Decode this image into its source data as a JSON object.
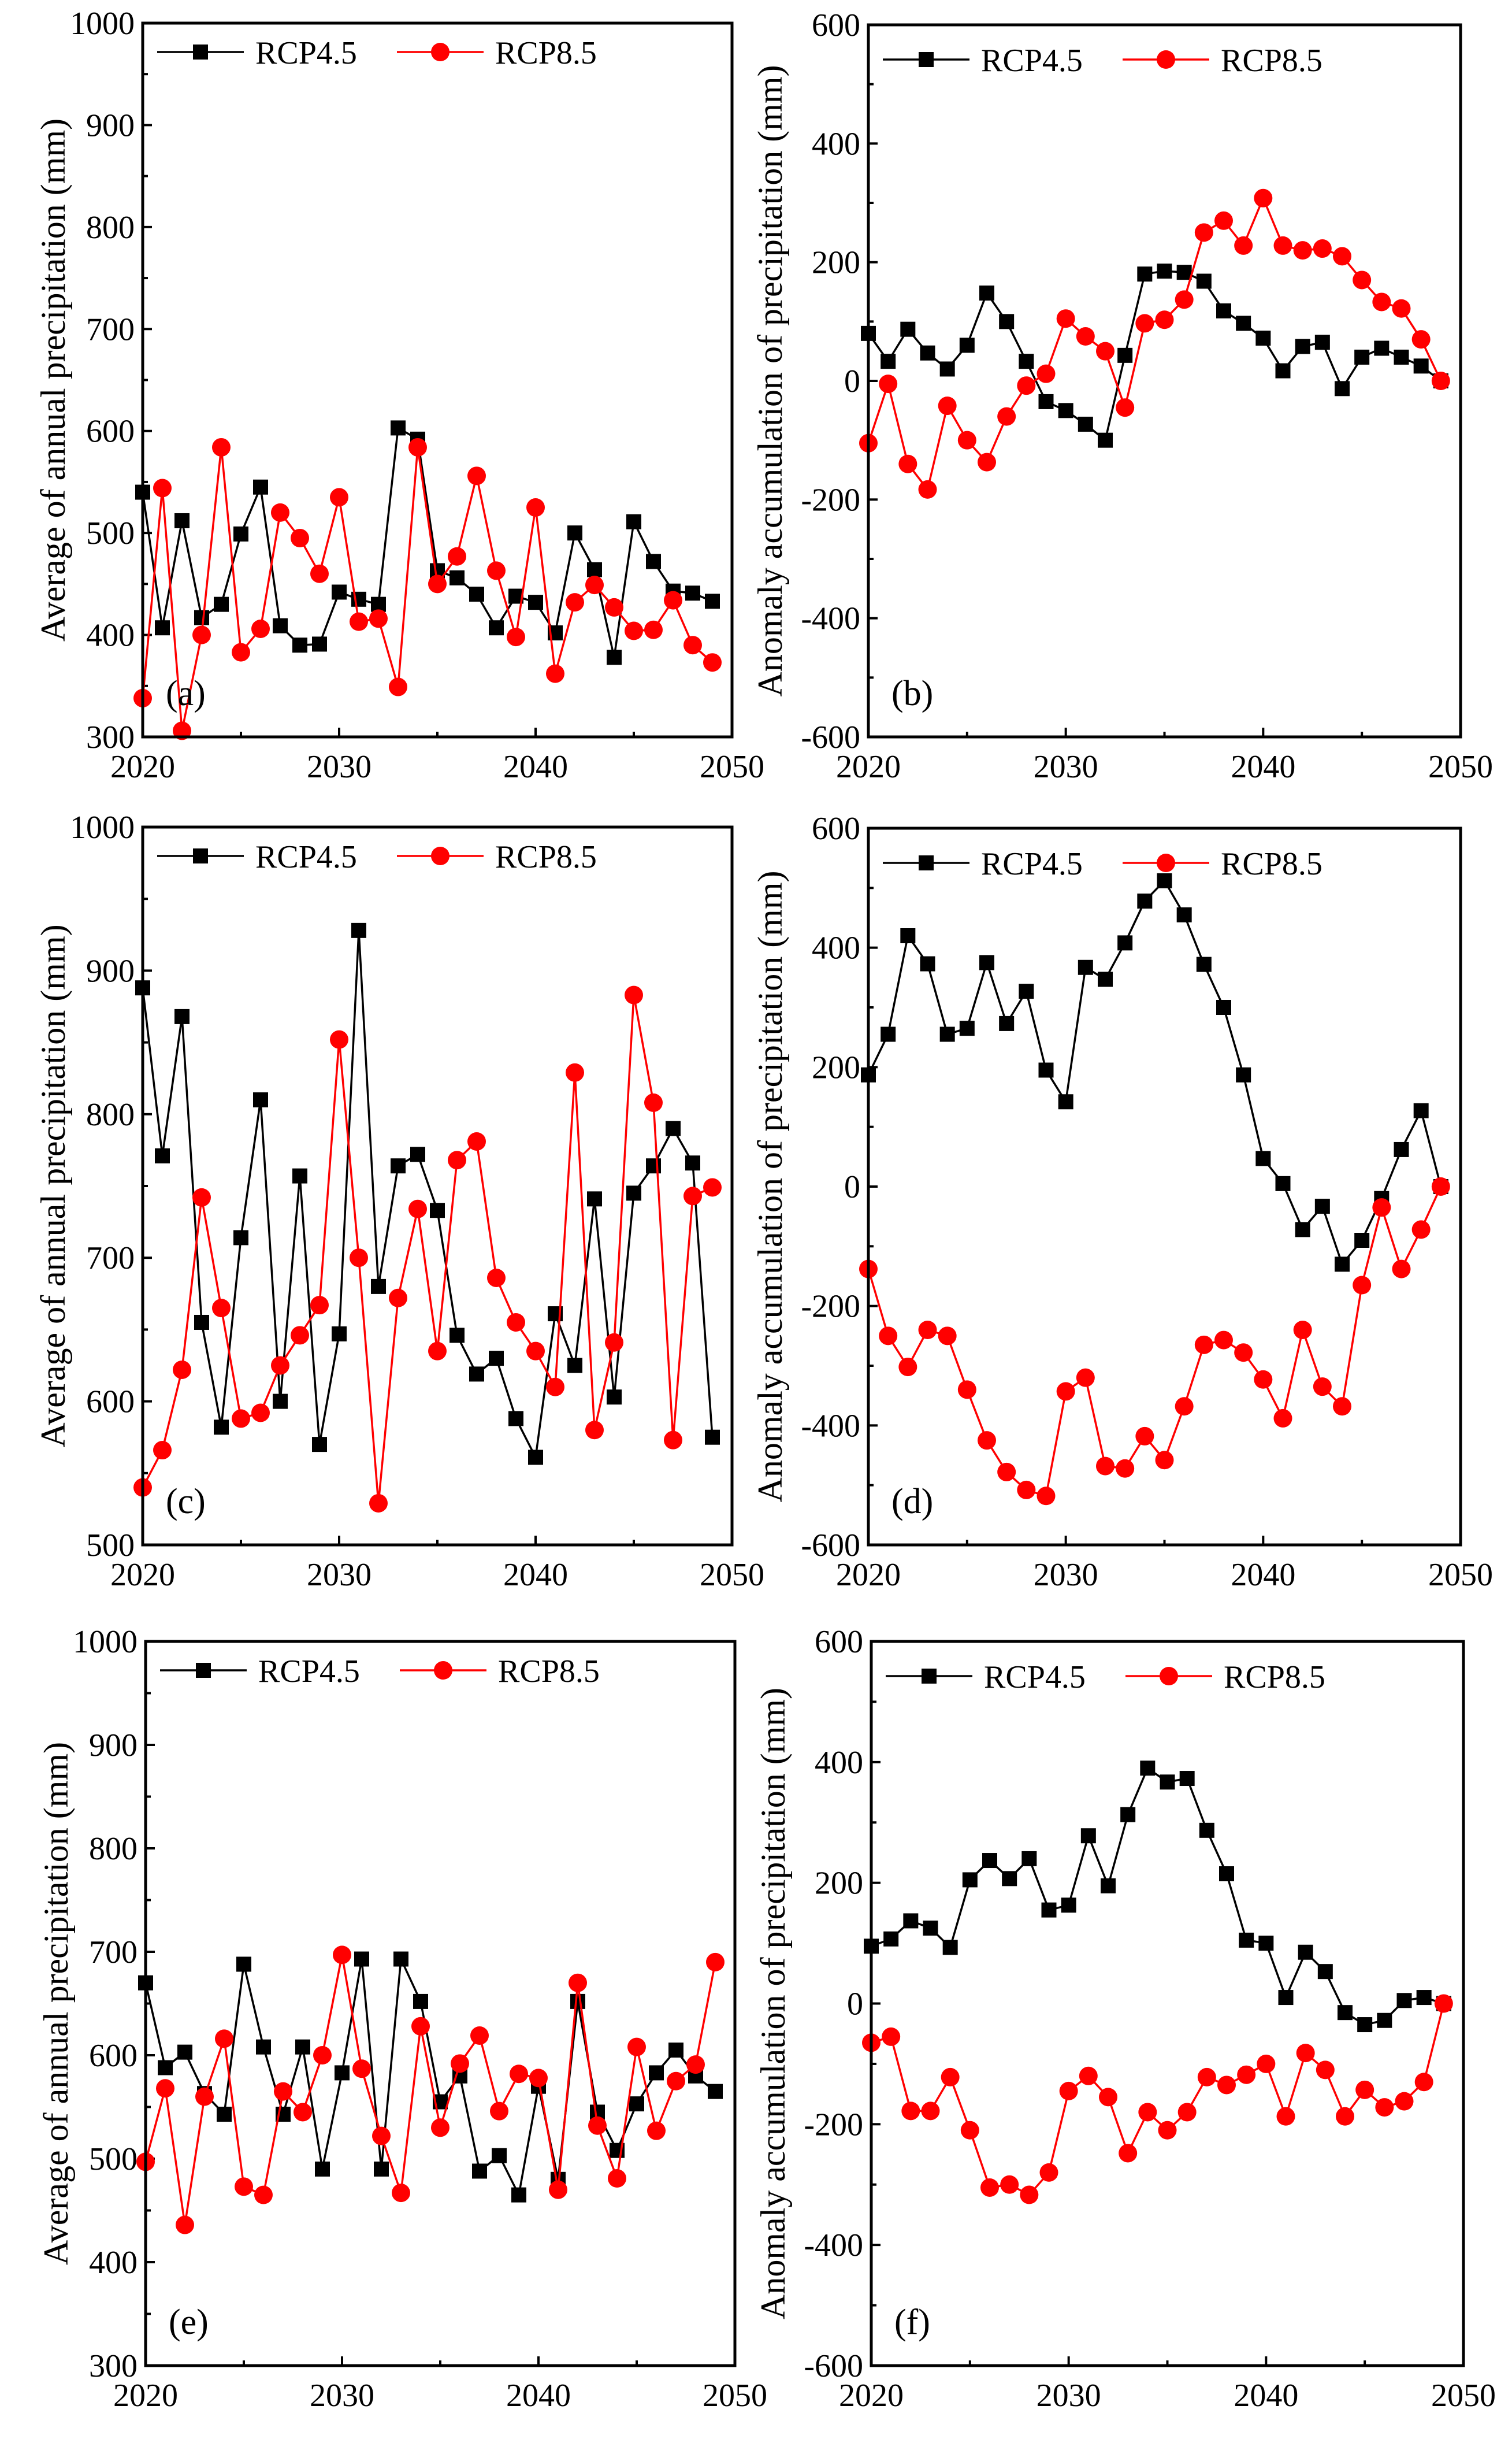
{
  "chart_data": [
    {
      "panel": "(a)",
      "type": "line",
      "xlabel": "",
      "ylabel": "Average of annual precipitation (mm)",
      "xlim": [
        2020,
        2050
      ],
      "ylim": [
        300,
        1000
      ],
      "xticks": [
        2020,
        2030,
        2040,
        2050
      ],
      "yticks": [
        300,
        400,
        500,
        600,
        700,
        800,
        900,
        1000
      ],
      "legend": "top-left",
      "x": [
        2020,
        2021,
        2022,
        2023,
        2024,
        2025,
        2026,
        2027,
        2028,
        2029,
        2030,
        2031,
        2032,
        2033,
        2034,
        2035,
        2036,
        2037,
        2038,
        2039,
        2040,
        2041,
        2042,
        2043,
        2044,
        2045,
        2046,
        2047,
        2048,
        2049
      ],
      "series": [
        {
          "name": "RCP4.5",
          "color": "#000000",
          "marker": "square",
          "values": [
            540,
            407,
            512,
            417,
            430,
            499,
            545,
            409,
            390,
            391,
            442,
            435,
            430,
            603,
            592,
            463,
            456,
            440,
            407,
            438,
            432,
            402,
            500,
            464,
            378,
            511,
            472,
            443,
            441,
            433
          ]
        },
        {
          "name": "RCP8.5",
          "color": "#ff0000",
          "marker": "circle",
          "values": [
            338,
            544,
            306,
            400,
            584,
            383,
            406,
            520,
            495,
            460,
            535,
            413,
            416,
            349,
            584,
            450,
            477,
            556,
            463,
            398,
            525,
            362,
            432,
            449,
            427,
            404,
            405,
            434,
            390,
            373
          ]
        }
      ]
    },
    {
      "panel": "(b)",
      "type": "line",
      "xlabel": "",
      "ylabel": "Anomaly accumulation of precipitation (mm)",
      "xlim": [
        2020,
        2050
      ],
      "ylim": [
        -600,
        600
      ],
      "xticks": [
        2020,
        2030,
        2040,
        2050
      ],
      "yticks": [
        -600,
        -400,
        -200,
        0,
        200,
        400,
        600
      ],
      "legend": "top-left",
      "x": [
        2020,
        2021,
        2022,
        2023,
        2024,
        2025,
        2026,
        2027,
        2028,
        2029,
        2030,
        2031,
        2032,
        2033,
        2034,
        2035,
        2036,
        2037,
        2038,
        2039,
        2040,
        2041,
        2042,
        2043,
        2044,
        2045,
        2046,
        2047,
        2048,
        2049
      ],
      "series": [
        {
          "name": "RCP4.5",
          "color": "#000000",
          "marker": "square",
          "values": [
            80,
            33,
            87,
            47,
            20,
            60,
            148,
            100,
            33,
            -35,
            -50,
            -73,
            -100,
            43,
            180,
            185,
            183,
            168,
            118,
            97,
            72,
            17,
            58,
            65,
            -13,
            40,
            55,
            40,
            25,
            0
          ]
        },
        {
          "name": "RCP8.5",
          "color": "#ff0000",
          "marker": "circle",
          "values": [
            -105,
            -5,
            -140,
            -183,
            -42,
            -100,
            -137,
            -60,
            -8,
            12,
            105,
            75,
            50,
            -45,
            97,
            103,
            137,
            250,
            270,
            228,
            308,
            228,
            220,
            223,
            210,
            170,
            133,
            122,
            70,
            0
          ]
        }
      ]
    },
    {
      "panel": "(c)",
      "type": "line",
      "xlabel": "",
      "ylabel": "Average of annual precipitation (mm)",
      "xlim": [
        2020,
        2050
      ],
      "ylim": [
        500,
        1000
      ],
      "xticks": [
        2020,
        2030,
        2040,
        2050
      ],
      "yticks": [
        500,
        600,
        700,
        800,
        900,
        1000
      ],
      "legend": "top-left",
      "x": [
        2020,
        2021,
        2022,
        2023,
        2024,
        2025,
        2026,
        2027,
        2028,
        2029,
        2030,
        2031,
        2032,
        2033,
        2034,
        2035,
        2036,
        2037,
        2038,
        2039,
        2040,
        2041,
        2042,
        2043,
        2044,
        2045,
        2046,
        2047,
        2048,
        2049
      ],
      "series": [
        {
          "name": "RCP4.5",
          "color": "#000000",
          "marker": "square",
          "values": [
            888,
            771,
            868,
            655,
            582,
            714,
            810,
            600,
            757,
            570,
            647,
            928,
            680,
            764,
            772,
            733,
            646,
            619,
            630,
            588,
            561,
            661,
            625,
            741,
            603,
            745,
            764,
            790,
            766,
            575
          ]
        },
        {
          "name": "RCP8.5",
          "color": "#ff0000",
          "marker": "circle",
          "values": [
            540,
            566,
            622,
            742,
            665,
            588,
            592,
            625,
            646,
            667,
            852,
            700,
            529,
            672,
            734,
            635,
            768,
            781,
            686,
            655,
            635,
            610,
            829,
            580,
            641,
            883,
            808,
            573,
            743,
            749
          ]
        }
      ]
    },
    {
      "panel": "(d)",
      "type": "line",
      "xlabel": "",
      "ylabel": "Anomaly accumulation of precipitation (mm)",
      "xlim": [
        2020,
        2050
      ],
      "ylim": [
        -600,
        600
      ],
      "xticks": [
        2020,
        2030,
        2040,
        2050
      ],
      "yticks": [
        -600,
        -400,
        -200,
        0,
        200,
        400,
        600
      ],
      "legend": "top-left",
      "x": [
        2020,
        2021,
        2022,
        2023,
        2024,
        2025,
        2026,
        2027,
        2028,
        2029,
        2030,
        2031,
        2032,
        2033,
        2034,
        2035,
        2036,
        2037,
        2038,
        2039,
        2040,
        2041,
        2042,
        2043,
        2044,
        2045,
        2046,
        2047,
        2048,
        2049
      ],
      "series": [
        {
          "name": "RCP4.5",
          "color": "#000000",
          "marker": "square",
          "values": [
            187,
            255,
            420,
            373,
            255,
            265,
            375,
            273,
            327,
            195,
            142,
            367,
            347,
            408,
            478,
            512,
            455,
            372,
            300,
            187,
            47,
            5,
            -72,
            -33,
            -130,
            -90,
            -20,
            62,
            127,
            0
          ]
        },
        {
          "name": "RCP8.5",
          "color": "#ff0000",
          "marker": "circle",
          "values": [
            -138,
            -250,
            -302,
            -240,
            -250,
            -340,
            -425,
            -478,
            -508,
            -518,
            -343,
            -320,
            -468,
            -472,
            -418,
            -458,
            -368,
            -265,
            -257,
            -278,
            -323,
            -388,
            -240,
            -335,
            -368,
            -165,
            -35,
            -138,
            -72,
            0
          ]
        }
      ]
    },
    {
      "panel": "(e)",
      "type": "line",
      "xlabel": "",
      "ylabel": "Average of annual precipitation (mm)",
      "xlim": [
        2020,
        2050
      ],
      "ylim": [
        300,
        1000
      ],
      "xticks": [
        2020,
        2030,
        2040,
        2050
      ],
      "yticks": [
        300,
        400,
        500,
        600,
        700,
        800,
        900,
        1000
      ],
      "legend": "top-left",
      "x": [
        2020,
        2021,
        2022,
        2023,
        2024,
        2025,
        2026,
        2027,
        2028,
        2029,
        2030,
        2031,
        2032,
        2033,
        2034,
        2035,
        2036,
        2037,
        2038,
        2039,
        2040,
        2041,
        2042,
        2043,
        2044,
        2045,
        2046,
        2047,
        2048,
        2049
      ],
      "series": [
        {
          "name": "RCP4.5",
          "color": "#000000",
          "marker": "square",
          "values": [
            670,
            588,
            603,
            563,
            543,
            688,
            608,
            543,
            608,
            490,
            583,
            693,
            490,
            693,
            652,
            555,
            580,
            488,
            503,
            465,
            570,
            480,
            652,
            545,
            508,
            553,
            583,
            605,
            580,
            565
          ]
        },
        {
          "name": "RCP8.5",
          "color": "#ff0000",
          "marker": "circle",
          "values": [
            497,
            568,
            436,
            560,
            616,
            473,
            465,
            565,
            545,
            600,
            697,
            587,
            522,
            467,
            628,
            530,
            592,
            619,
            546,
            582,
            578,
            470,
            670,
            532,
            481,
            608,
            527,
            575,
            591,
            690
          ]
        }
      ]
    },
    {
      "panel": "(f)",
      "type": "line",
      "xlabel": "",
      "ylabel": "Anomaly accumulation of precipitation (mm)",
      "xlim": [
        2020,
        2050
      ],
      "ylim": [
        -600,
        600
      ],
      "xticks": [
        2020,
        2030,
        2040,
        2050
      ],
      "yticks": [
        -600,
        -400,
        -200,
        0,
        200,
        400,
        600
      ],
      "legend": "top-left",
      "x": [
        2020,
        2021,
        2022,
        2023,
        2024,
        2025,
        2026,
        2027,
        2028,
        2029,
        2030,
        2031,
        2032,
        2033,
        2034,
        2035,
        2036,
        2037,
        2038,
        2039,
        2040,
        2041,
        2042,
        2043,
        2044,
        2045,
        2046,
        2047,
        2048,
        2049
      ],
      "series": [
        {
          "name": "RCP4.5",
          "color": "#000000",
          "marker": "square",
          "values": [
            95,
            107,
            137,
            125,
            93,
            205,
            237,
            207,
            240,
            155,
            163,
            278,
            195,
            313,
            390,
            367,
            373,
            287,
            215,
            105,
            100,
            10,
            85,
            53,
            -15,
            -35,
            -28,
            5,
            10,
            0
          ]
        },
        {
          "name": "RCP8.5",
          "color": "#ff0000",
          "marker": "circle",
          "values": [
            -65,
            -55,
            -178,
            -178,
            -122,
            -210,
            -305,
            -300,
            -317,
            -280,
            -145,
            -120,
            -155,
            -248,
            -180,
            -210,
            -180,
            -122,
            -135,
            -118,
            -100,
            -187,
            -82,
            -110,
            -187,
            -143,
            -172,
            -162,
            -130,
            0
          ]
        }
      ]
    }
  ]
}
